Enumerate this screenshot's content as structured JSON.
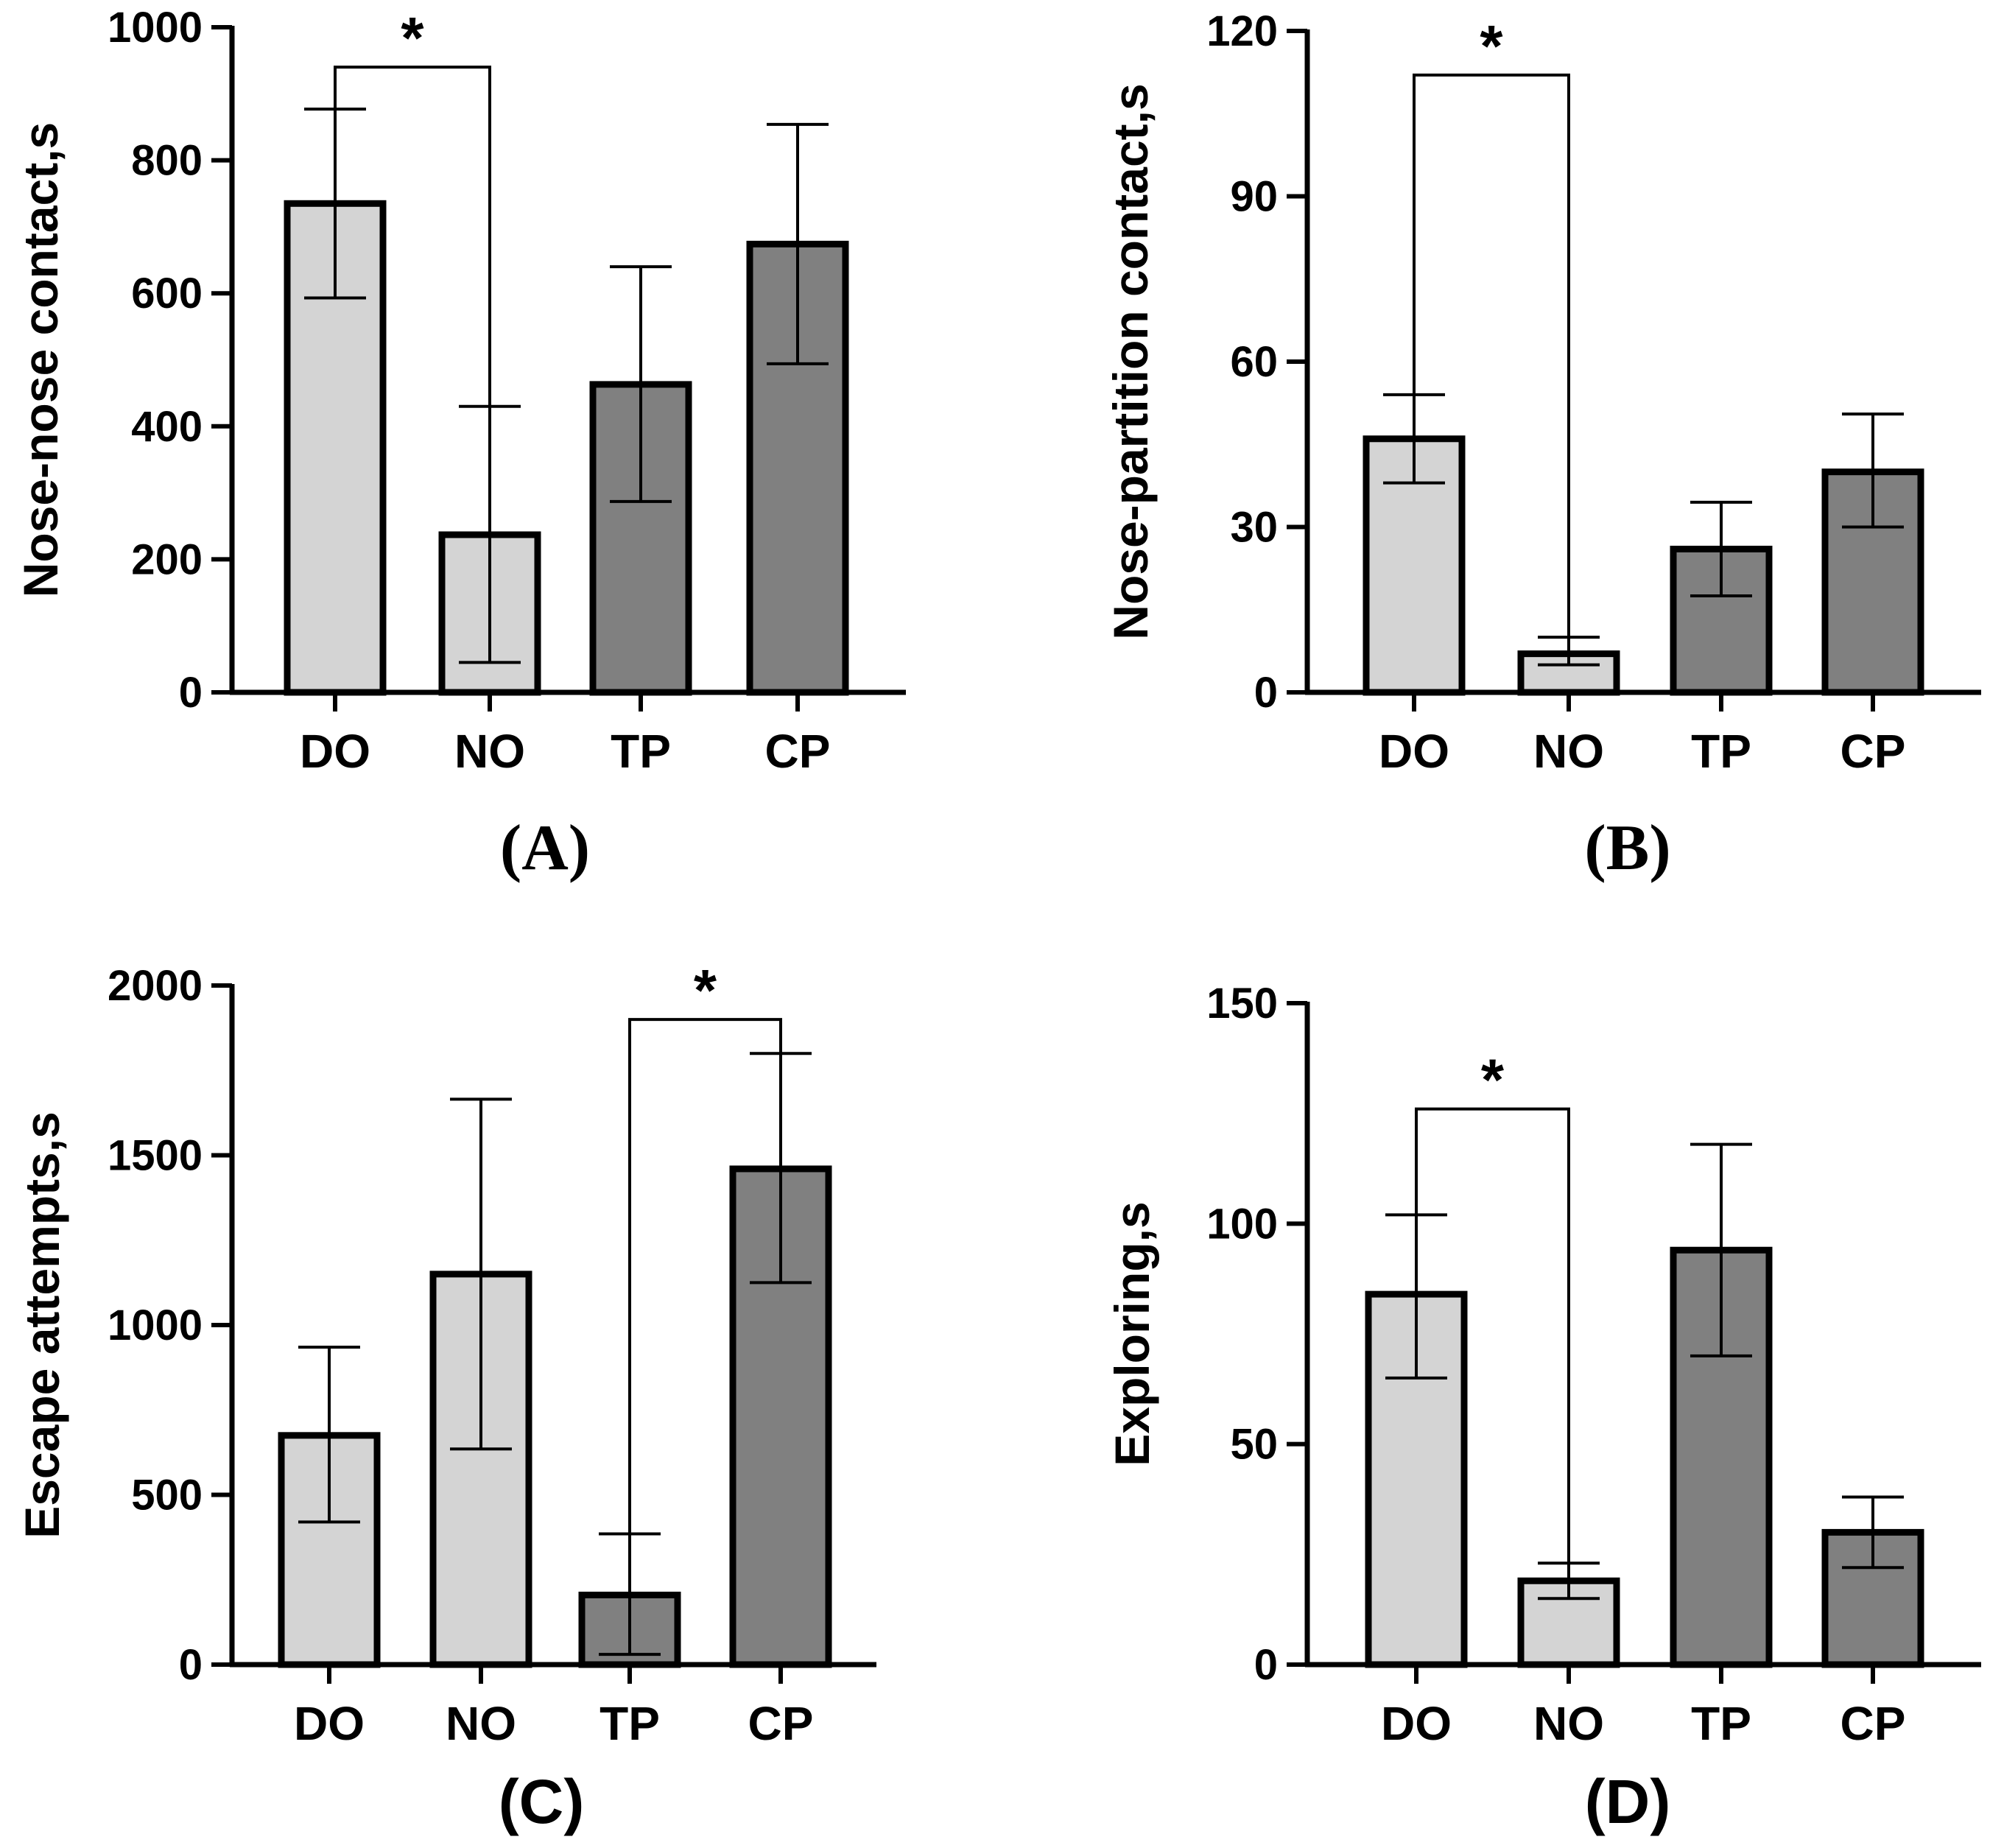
{
  "colors": {
    "light_bar": "#d4d4d4",
    "dark_bar": "#808080",
    "stroke": "#000000"
  },
  "chart_data": [
    {
      "type": "bar",
      "panel": "(A)",
      "ylabel": "Nose-nose contact,s",
      "categories": [
        "DO",
        "NO",
        "TP",
        "CP"
      ],
      "values": [
        735,
        237,
        463,
        674
      ],
      "errors": [
        [
          593,
          877
        ],
        [
          45,
          430
        ],
        [
          287,
          640
        ],
        [
          494,
          854
        ]
      ],
      "fills": [
        "light",
        "light",
        "dark",
        "dark"
      ],
      "ylim": [
        0,
        1000
      ],
      "yticks": [
        0,
        200,
        400,
        600,
        800,
        1000
      ],
      "significance": {
        "from": 0,
        "to": 1,
        "level": 940,
        "label": "*"
      }
    },
    {
      "type": "bar",
      "panel": "(B)",
      "ylabel": "Nose-partition contact,s",
      "categories": [
        "DO",
        "NO",
        "TP",
        "CP"
      ],
      "values": [
        46,
        7,
        26,
        40
      ],
      "errors": [
        [
          38,
          54
        ],
        [
          5,
          10
        ],
        [
          17.5,
          34.5
        ],
        [
          30,
          50.5
        ]
      ],
      "fills": [
        "light",
        "light",
        "dark",
        "dark"
      ],
      "ylim": [
        0,
        120
      ],
      "yticks": [
        0,
        30,
        60,
        90,
        120
      ],
      "significance": {
        "from": 0,
        "to": 1,
        "level": 112,
        "label": "*"
      }
    },
    {
      "type": "bar",
      "panel": "(C)",
      "ylabel": "Escape attempts,s",
      "categories": [
        "DO",
        "NO",
        "TP",
        "CP"
      ],
      "values": [
        675,
        1150,
        205,
        1460
      ],
      "errors": [
        [
          420,
          935
        ],
        [
          635,
          1665
        ],
        [
          30,
          385
        ],
        [
          1125,
          1800
        ]
      ],
      "fills": [
        "light",
        "light",
        "dark",
        "dark"
      ],
      "ylim": [
        0,
        2000
      ],
      "yticks": [
        0,
        500,
        1000,
        1500,
        2000
      ],
      "significance": {
        "from": 2,
        "to": 3,
        "level": 1900,
        "label": "*"
      }
    },
    {
      "type": "bar",
      "panel": "(D)",
      "ylabel": "Exploring,s",
      "categories": [
        "DO",
        "NO",
        "TP",
        "CP"
      ],
      "values": [
        84,
        19,
        94,
        30
      ],
      "errors": [
        [
          65,
          102
        ],
        [
          15,
          23
        ],
        [
          70,
          118
        ],
        [
          22,
          38
        ]
      ],
      "fills": [
        "light",
        "light",
        "dark",
        "dark"
      ],
      "ylim": [
        0,
        150
      ],
      "yticks": [
        0,
        50,
        100,
        150
      ],
      "significance": {
        "from": 0,
        "to": 1,
        "level": 126,
        "label": "*"
      }
    }
  ]
}
